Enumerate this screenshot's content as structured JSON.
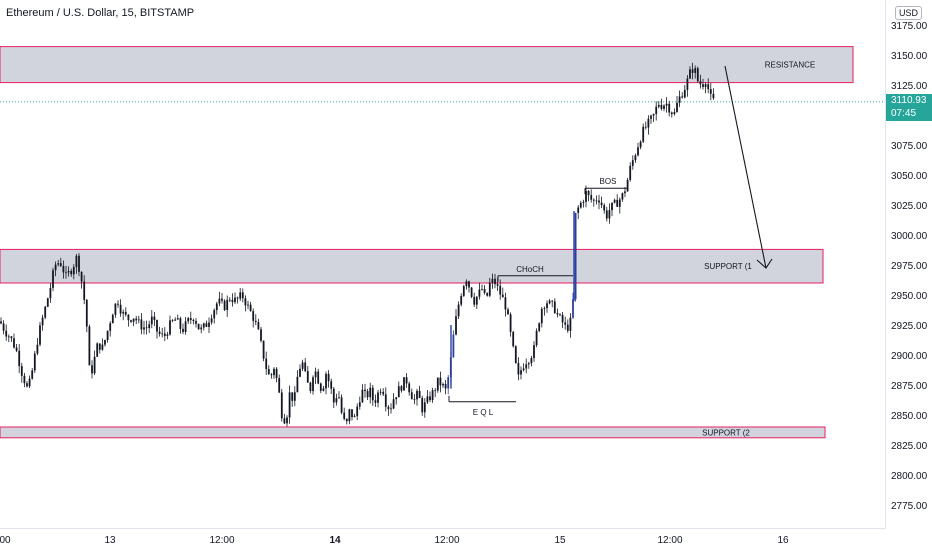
{
  "header": {
    "title": "Ethereum / U.S. Dollar, 15, BITSTAMP",
    "currency": "USD"
  },
  "price_tag": {
    "price": "3110.93",
    "countdown": "07:45"
  },
  "colors": {
    "candle": "#131722",
    "highlight_candle": "#2a3f9e",
    "zone_fill": "#d1d4dc",
    "zone_border": "#e91e63",
    "price_line": "#26a69a",
    "axis_text": "#131722"
  },
  "chart_data": {
    "type": "candlestick",
    "symbol": "Ethereum / U.S. Dollar",
    "interval": "15",
    "exchange": "BITSTAMP",
    "ylim": [
      2750,
      3190
    ],
    "y_ticks": [
      "3175.00",
      "3150.00",
      "3125.00",
      "3100.00",
      "3075.00",
      "3050.00",
      "3025.00",
      "3000.00",
      "2975.00",
      "2950.00",
      "2925.00",
      "2900.00",
      "2875.00",
      "2850.00",
      "2825.00",
      "2800.00",
      "2775.00"
    ],
    "x_ticks": [
      {
        "label": "00",
        "bold": false
      },
      {
        "label": "13",
        "bold": false
      },
      {
        "label": "12:00",
        "bold": false
      },
      {
        "label": "14",
        "bold": true
      },
      {
        "label": "12:00",
        "bold": false
      },
      {
        "label": "15",
        "bold": false
      },
      {
        "label": "12:00",
        "bold": false
      },
      {
        "label": "16",
        "bold": false
      }
    ],
    "zones": [
      {
        "label": "RESISTANCE",
        "top": 3157,
        "bottom": 3127
      },
      {
        "label": "SUPPORT (1",
        "top": 2988,
        "bottom": 2960
      },
      {
        "label": "SUPPORT (2",
        "top": 2840,
        "bottom": 2831
      }
    ],
    "annotations": [
      {
        "label": "CHoCH",
        "price": 2966
      },
      {
        "label": "BOS",
        "price": 3039
      },
      {
        "label": "E Q L",
        "price": 2861
      }
    ],
    "last_price": 3110.93,
    "path": [
      [
        0,
        2928
      ],
      [
        5,
        2920
      ],
      [
        10,
        2915
      ],
      [
        16,
        2905
      ],
      [
        22,
        2885
      ],
      [
        28,
        2870
      ],
      [
        33,
        2890
      ],
      [
        38,
        2915
      ],
      [
        44,
        2935
      ],
      [
        50,
        2955
      ],
      [
        55,
        2975
      ],
      [
        60,
        2978
      ],
      [
        66,
        2965
      ],
      [
        72,
        2972
      ],
      [
        77,
        2982
      ],
      [
        82,
        2960
      ],
      [
        86,
        2935
      ],
      [
        90,
        2880
      ],
      [
        94,
        2895
      ],
      [
        98,
        2910
      ],
      [
        102,
        2905
      ],
      [
        106,
        2915
      ],
      [
        110,
        2928
      ],
      [
        114,
        2940
      ],
      [
        118,
        2945
      ],
      [
        122,
        2935
      ],
      [
        128,
        2930
      ],
      [
        134,
        2932
      ],
      [
        140,
        2925
      ],
      [
        146,
        2922
      ],
      [
        152,
        2930
      ],
      [
        158,
        2918
      ],
      [
        164,
        2915
      ],
      [
        170,
        2925
      ],
      [
        176,
        2930
      ],
      [
        182,
        2920
      ],
      [
        188,
        2928
      ],
      [
        194,
        2932
      ],
      [
        200,
        2920
      ],
      [
        206,
        2925
      ],
      [
        212,
        2935
      ],
      [
        218,
        2945
      ],
      [
        224,
        2940
      ],
      [
        230,
        2948
      ],
      [
        236,
        2945
      ],
      [
        242,
        2950
      ],
      [
        248,
        2940
      ],
      [
        254,
        2930
      ],
      [
        258,
        2920
      ],
      [
        262,
        2905
      ],
      [
        266,
        2890
      ],
      [
        270,
        2880
      ],
      [
        274,
        2890
      ],
      [
        278,
        2875
      ],
      [
        282,
        2850
      ],
      [
        286,
        2845
      ],
      [
        290,
        2870
      ],
      [
        294,
        2860
      ],
      [
        298,
        2885
      ],
      [
        302,
        2895
      ],
      [
        306,
        2880
      ],
      [
        310,
        2870
      ],
      [
        314,
        2890
      ],
      [
        318,
        2880
      ],
      [
        322,
        2870
      ],
      [
        326,
        2885
      ],
      [
        330,
        2875
      ],
      [
        334,
        2860
      ],
      [
        338,
        2870
      ],
      [
        342,
        2850
      ],
      [
        346,
        2840
      ],
      [
        350,
        2855
      ],
      [
        354,
        2845
      ],
      [
        358,
        2860
      ],
      [
        362,
        2870
      ],
      [
        366,
        2865
      ],
      [
        370,
        2870
      ],
      [
        374,
        2860
      ],
      [
        378,
        2868
      ],
      [
        382,
        2875
      ],
      [
        386,
        2860
      ],
      [
        390,
        2855
      ],
      [
        394,
        2865
      ],
      [
        398,
        2870
      ],
      [
        402,
        2875
      ],
      [
        406,
        2880
      ],
      [
        410,
        2870
      ],
      [
        414,
        2862
      ],
      [
        418,
        2868
      ],
      [
        422,
        2855
      ],
      [
        426,
        2860
      ],
      [
        430,
        2865
      ],
      [
        434,
        2870
      ],
      [
        438,
        2878
      ],
      [
        442,
        2875
      ],
      [
        446,
        2870
      ],
      [
        450,
        2890
      ],
      [
        454,
        2920
      ],
      [
        458,
        2940
      ],
      [
        462,
        2955
      ],
      [
        466,
        2965
      ],
      [
        470,
        2955
      ],
      [
        474,
        2945
      ],
      [
        478,
        2950
      ],
      [
        482,
        2955
      ],
      [
        486,
        2945
      ],
      [
        490,
        2960
      ],
      [
        494,
        2962
      ],
      [
        498,
        2955
      ],
      [
        502,
        2948
      ],
      [
        506,
        2940
      ],
      [
        510,
        2920
      ],
      [
        514,
        2900
      ],
      [
        518,
        2880
      ],
      [
        522,
        2890
      ],
      [
        526,
        2895
      ],
      [
        530,
        2898
      ],
      [
        534,
        2905
      ],
      [
        538,
        2925
      ],
      [
        542,
        2940
      ],
      [
        546,
        2945
      ],
      [
        550,
        2942
      ],
      [
        554,
        2940
      ],
      [
        558,
        2932
      ],
      [
        562,
        2928
      ],
      [
        566,
        2922
      ],
      [
        570,
        2925
      ],
      [
        573,
        2945
      ],
      [
        575,
        3015
      ],
      [
        578,
        3022
      ],
      [
        582,
        3028
      ],
      [
        586,
        3035
      ],
      [
        590,
        3030
      ],
      [
        594,
        3028
      ],
      [
        598,
        3032
      ],
      [
        602,
        3025
      ],
      [
        606,
        3015
      ],
      [
        610,
        3022
      ],
      [
        614,
        3025
      ],
      [
        618,
        3028
      ],
      [
        622,
        3032
      ],
      [
        626,
        3040
      ],
      [
        630,
        3055
      ],
      [
        634,
        3065
      ],
      [
        638,
        3075
      ],
      [
        642,
        3085
      ],
      [
        646,
        3090
      ],
      [
        650,
        3095
      ],
      [
        654,
        3100
      ],
      [
        658,
        3110
      ],
      [
        662,
        3108
      ],
      [
        666,
        3110
      ],
      [
        670,
        3105
      ],
      [
        674,
        3100
      ],
      [
        678,
        3112
      ],
      [
        682,
        3118
      ],
      [
        686,
        3125
      ],
      [
        690,
        3135
      ],
      [
        694,
        3140
      ],
      [
        698,
        3128
      ],
      [
        702,
        3125
      ],
      [
        706,
        3130
      ],
      [
        710,
        3115
      ],
      [
        714,
        3110.93
      ]
    ]
  }
}
